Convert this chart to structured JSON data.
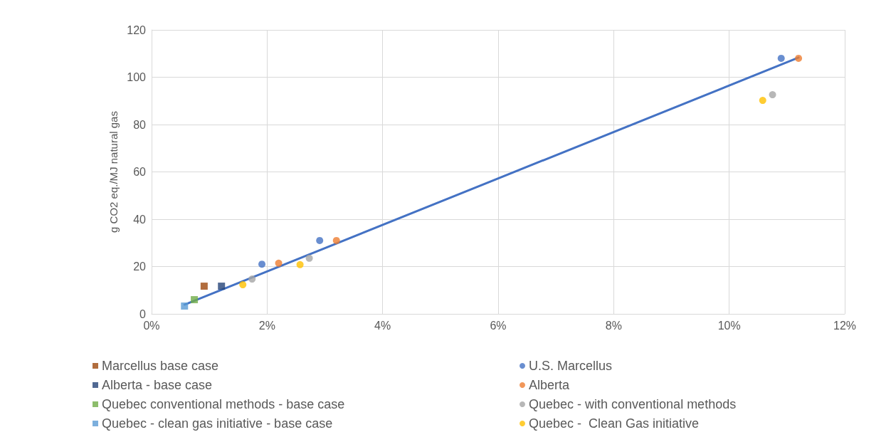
{
  "chart_data": {
    "type": "scatter",
    "ylabel": "g CO2 eq./MJ natural gas",
    "xlim": [
      0,
      12
    ],
    "xticks": [
      {
        "value": 0,
        "label": "0%"
      },
      {
        "value": 2,
        "label": "2%"
      },
      {
        "value": 4,
        "label": "4%"
      },
      {
        "value": 6,
        "label": "6%"
      },
      {
        "value": 8,
        "label": "8%"
      },
      {
        "value": 10,
        "label": "10%"
      },
      {
        "value": 12,
        "label": "12%"
      }
    ],
    "ylim": [
      0,
      120
    ],
    "yticks": [
      0,
      20,
      40,
      60,
      80,
      100,
      120
    ],
    "grid": true,
    "legend": "bottom",
    "series": [
      {
        "name": "Marcellus base case",
        "color": "#9e480e",
        "marker": "square",
        "x": [
          0.91
        ],
        "values": [
          11.7
        ]
      },
      {
        "name": "Alberta - base case",
        "color": "#264478",
        "marker": "square",
        "x": [
          1.21
        ],
        "values": [
          11.7
        ]
      },
      {
        "name": "Quebec conventional methods - base case",
        "color": "#70ad47",
        "marker": "square",
        "x": [
          0.74
        ],
        "values": [
          6.0
        ]
      },
      {
        "name": "Quebec - clean gas initiative - base case",
        "color": "#5b9bd5",
        "marker": "square",
        "x": [
          0.57
        ],
        "values": [
          3.3
        ]
      },
      {
        "name": "U.S. Marcellus",
        "color": "#4472c4",
        "marker": "circle",
        "x": [
          1.91,
          2.91,
          10.9
        ],
        "values": [
          21,
          31,
          108
        ]
      },
      {
        "name": "Alberta",
        "color": "#ed7d31",
        "marker": "circle",
        "x": [
          2.2,
          3.2,
          11.2
        ],
        "values": [
          21.4,
          31,
          108
        ]
      },
      {
        "name": "Quebec - with conventional methods",
        "color": "#a5a5a5",
        "marker": "circle",
        "x": [
          1.74,
          2.73,
          10.75
        ],
        "values": [
          14.7,
          23.5,
          92.6
        ]
      },
      {
        "name": "Quebec -  Clean Gas initiative",
        "color": "#ffc000",
        "marker": "circle",
        "x": [
          1.58,
          2.57,
          10.58
        ],
        "values": [
          12.3,
          20.8,
          90.2
        ]
      },
      {
        "type": "line",
        "color": "#4472c4",
        "marker": "none",
        "line_style": "solid",
        "x": [
          0.57,
          11.2
        ],
        "values": [
          3.9,
          108.3
        ]
      }
    ]
  }
}
